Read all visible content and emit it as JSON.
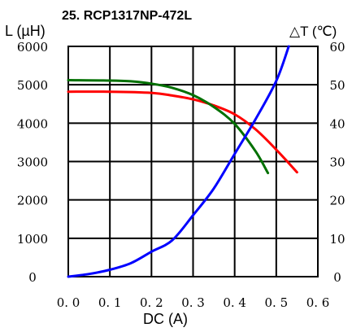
{
  "chart_data": {
    "type": "line",
    "title": "25. RCP1317NP-472L",
    "xlabel": "DC (A)",
    "ylabel_left": "L (µH)",
    "ylabel_right": "△T (℃)",
    "xlim": [
      0,
      0.6
    ],
    "ylim_left": [
      0,
      6000
    ],
    "ylim_right": [
      0,
      60
    ],
    "x_ticks": [
      "0. 0",
      "0. 1",
      "0. 2",
      "0. 3",
      "0. 4",
      "0. 5",
      "0. 6"
    ],
    "y_left_ticks": [
      "0",
      "1000",
      "2000",
      "3000",
      "4000",
      "5000",
      "6000"
    ],
    "y_right_ticks": [
      "0",
      "10",
      "20",
      "30",
      "40",
      "50",
      "60"
    ],
    "grid": true,
    "series": [
      {
        "color": "#ff0000",
        "axis": "left",
        "x": [
          0.0,
          0.1,
          0.2,
          0.25,
          0.3,
          0.35,
          0.4,
          0.45,
          0.5,
          0.55
        ],
        "y": [
          4820,
          4820,
          4790,
          4720,
          4620,
          4460,
          4230,
          3840,
          3310,
          2720
        ]
      },
      {
        "color": "#007000",
        "axis": "left",
        "x": [
          0.0,
          0.1,
          0.15,
          0.2,
          0.25,
          0.3,
          0.35,
          0.4,
          0.45,
          0.48
        ],
        "y": [
          5120,
          5110,
          5090,
          5030,
          4920,
          4730,
          4420,
          3980,
          3270,
          2700
        ]
      },
      {
        "color": "#0000ff",
        "axis": "right",
        "x": [
          0.0,
          0.05,
          0.1,
          0.15,
          0.2,
          0.25,
          0.3,
          0.35,
          0.4,
          0.45,
          0.5,
          0.53
        ],
        "y": [
          0,
          0.7,
          1.8,
          3.5,
          6.5,
          9.5,
          16,
          23,
          32,
          41,
          51,
          60
        ]
      }
    ]
  }
}
